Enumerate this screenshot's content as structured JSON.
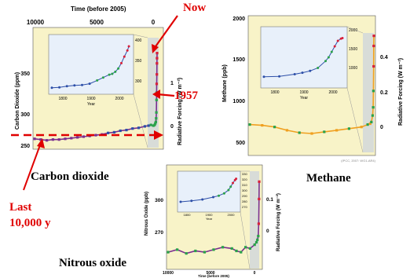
{
  "annotations": {
    "now": "Now",
    "year_1957": "1957",
    "last": "Last",
    "last_span": "10,000 y"
  },
  "captions": {
    "co2": "Carbon dioxide",
    "ch4": "Methane",
    "n2o": "Nitrous oxide"
  },
  "colors": {
    "panel_bg": "#f8f3c8",
    "inset_bg": "#e8f0fa",
    "annotation_red": "#e00000",
    "series_purple": "#7a2f8f",
    "series_blue": "#2d4fa8",
    "series_green": "#2aa24a",
    "series_red": "#d8203a",
    "series_orange": "#f0a020"
  },
  "chart_data": [
    {
      "id": "co2",
      "type": "scatter",
      "title": "",
      "xlabel_top": "Time (before 2005)",
      "ylabel": "Carbon Dioxide (ppm)",
      "ylabel_right": "Radiative Forcing (W m⁻²)",
      "x_ticks": [
        "10000",
        "5000",
        "0"
      ],
      "y_ticks": [
        "250",
        "300",
        "350"
      ],
      "y_right_ticks": [
        "0",
        "1"
      ],
      "xlim": [
        10000,
        0
      ],
      "ylim": [
        250,
        400
      ],
      "series": [
        {
          "x": [
            10000,
            9500,
            9000,
            8500,
            8000,
            7500,
            7000,
            6500,
            6000,
            5500,
            5000,
            4500,
            4000,
            3500,
            3000,
            2500,
            2000,
            1500,
            1000,
            700,
            500,
            300,
            200,
            150,
            100,
            80,
            60,
            48,
            40,
            30,
            20,
            10,
            5,
            0
          ],
          "y": [
            262,
            261,
            260,
            261,
            261,
            262,
            263,
            264,
            265,
            266,
            267,
            268,
            270,
            271,
            273,
            274,
            276,
            277,
            279,
            280,
            281,
            280,
            281,
            283,
            285,
            290,
            298,
            315,
            325,
            337,
            350,
            365,
            372,
            379
          ]
        }
      ],
      "inset": {
        "x_ticks": [
          "1800",
          "1900",
          "2000"
        ],
        "xlabel": "Year",
        "y_ticks": [
          "300",
          "350",
          "400"
        ],
        "xlim": [
          1750,
          2010
        ],
        "ylim": [
          270,
          400
        ],
        "x": [
          1750,
          1775,
          1800,
          1825,
          1850,
          1875,
          1900,
          1920,
          1940,
          1950,
          1960,
          1970,
          1980,
          1990,
          2000,
          2005
        ],
        "y": [
          278,
          279,
          282,
          284,
          285,
          288,
          296,
          303,
          310,
          312,
          317,
          325,
          338,
          354,
          369,
          379
        ]
      }
    },
    {
      "id": "ch4",
      "type": "scatter",
      "title": "",
      "ylabel": "Methane (ppb)",
      "ylabel_right": "Radiative Forcing (W m⁻²)",
      "y_ticks": [
        "500",
        "1000",
        "1500",
        "2000"
      ],
      "y_right_ticks": [
        "0",
        "0.2",
        "0.4"
      ],
      "xlim": [
        10000,
        0
      ],
      "ylim": [
        350,
        2000
      ],
      "series": [
        {
          "x": [
            10000,
            9000,
            8000,
            7000,
            6000,
            5000,
            4000,
            3000,
            2000,
            1000,
            500,
            300,
            200,
            100,
            60,
            40,
            20,
            10,
            0
          ],
          "y": [
            690,
            680,
            660,
            620,
            590,
            580,
            600,
            620,
            640,
            660,
            690,
            700,
            720,
            800,
            900,
            1100,
            1400,
            1650,
            1774
          ]
        }
      ],
      "inset": {
        "x_ticks": [
          "1800",
          "1900",
          "2000"
        ],
        "xlabel": "Year",
        "y_ticks": [
          "1000",
          "1500",
          "2000"
        ],
        "xlim": [
          1750,
          2010
        ],
        "ylim": [
          500,
          2000
        ],
        "x": [
          1750,
          1800,
          1850,
          1875,
          1900,
          1925,
          1950,
          1960,
          1970,
          1980,
          1990,
          2000,
          2005
        ],
        "y": [
          720,
          730,
          790,
          830,
          880,
          960,
          1150,
          1250,
          1400,
          1550,
          1700,
          1760,
          1774
        ]
      },
      "credit": "(IPCC, 2007: WG1-AR4)"
    },
    {
      "id": "n2o",
      "type": "scatter",
      "title": "",
      "xlabel": "Time (before 2005)",
      "ylabel": "Nitrous Oxide (ppb)",
      "ylabel_right": "Radiative Forcing (W m⁻²)",
      "x_ticks": [
        "10000",
        "5000",
        "0"
      ],
      "y_ticks": [
        "270",
        "300"
      ],
      "y_right_ticks": [
        "0",
        "0.1"
      ],
      "xlim": [
        10000,
        0
      ],
      "ylim": [
        250,
        330
      ],
      "series": [
        {
          "x": [
            10000,
            9000,
            8000,
            7000,
            6000,
            5000,
            4000,
            3000,
            2500,
            2000,
            1500,
            1000,
            500,
            300,
            200,
            100,
            50,
            20,
            0
          ],
          "y": [
            262,
            264,
            261,
            263,
            262,
            264,
            266,
            265,
            263,
            262,
            266,
            265,
            268,
            270,
            272,
            275,
            285,
            305,
            319
          ]
        }
      ],
      "inset": {
        "x_ticks": [
          "1800",
          "1900",
          "2000"
        ],
        "xlabel": "Year",
        "y_ticks": [
          "260",
          "270",
          "280",
          "290",
          "300",
          "310",
          "320",
          "330"
        ],
        "xlim": [
          1750,
          2010
        ],
        "ylim": [
          255,
          330
        ],
        "x": [
          1750,
          1800,
          1850,
          1900,
          1925,
          1950,
          1970,
          1980,
          1990,
          2000,
          2005
        ],
        "y": [
          270,
          272,
          275,
          280,
          283,
          288,
          295,
          302,
          310,
          316,
          319
        ]
      }
    }
  ]
}
